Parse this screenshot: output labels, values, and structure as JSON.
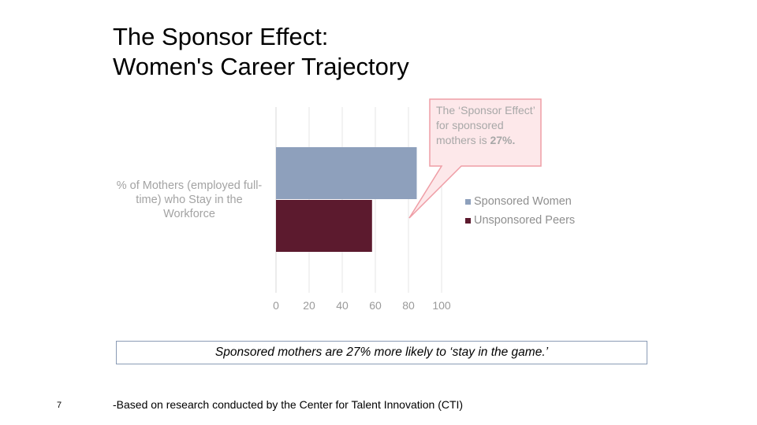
{
  "title": {
    "line1": "The Sponsor Effect:",
    "line2": "Women's Career Trajectory"
  },
  "callout": {
    "text_prefix": "The ‘Sponsor Effect’ for sponsored mothers is ",
    "highlight": "27%."
  },
  "banner": {
    "text": "Sponsored mothers are 27% more likely to ‘stay in the game.’"
  },
  "footer": {
    "slide_number": "7",
    "source": "-Based on research conducted by the Center for Talent Innovation (CTI)"
  },
  "colors": {
    "sponsored": "#8ea0bc",
    "unsponsored": "#5c1a2e",
    "callout_fill": "#fde8ea",
    "callout_border": "#ef9ea6",
    "grid": "#e6e6e6"
  },
  "chart_data": {
    "type": "bar",
    "orientation": "horizontal",
    "categories": [
      "% of Mothers (employed full-time) who Stay in the Workforce"
    ],
    "series": [
      {
        "name": "Sponsored Women",
        "values": [
          85
        ]
      },
      {
        "name": "Unsponsored Peers",
        "values": [
          58
        ]
      }
    ],
    "xlim": [
      0,
      100
    ],
    "xticks": [
      0,
      20,
      40,
      60,
      80,
      100
    ],
    "grid": true,
    "legend": "right"
  }
}
